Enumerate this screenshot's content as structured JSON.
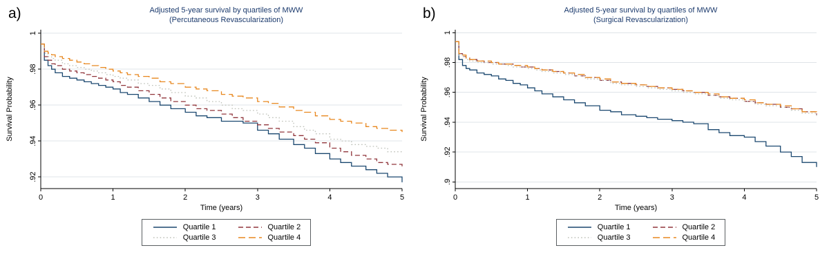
{
  "page": {
    "background": "#ffffff"
  },
  "panel_labels": [
    "a)",
    "b)"
  ],
  "legend": {
    "entries": [
      {
        "label": "Quartile 1",
        "color": "#1a476f",
        "dash": ""
      },
      {
        "label": "Quartile 2",
        "color": "#90353b",
        "dash": "7 4"
      },
      {
        "label": "Quartile 3",
        "color": "#bdc0b8",
        "dash": "1.6 3.2"
      },
      {
        "label": "Quartile 4",
        "color": "#e8871e",
        "dash": "10 5"
      }
    ]
  },
  "chart_data": [
    {
      "type": "line",
      "title": "Adjusted 5-year survival by quartiles of MWW",
      "subtitle": "(Percutaneous Revascularization)",
      "xlabel": "Time (years)",
      "ylabel": "Survival Probability",
      "xlim": [
        0,
        5
      ],
      "ylim": [
        0.9135,
        1.002
      ],
      "xticks": [
        0,
        1,
        2,
        3,
        4,
        5
      ],
      "xtick_labels": [
        "0",
        "1",
        "2",
        "3",
        "4",
        "5"
      ],
      "yticks": [
        1,
        0.98,
        0.96,
        0.94,
        0.92
      ],
      "ytick_labels": [
        "1",
        ".98",
        ".96",
        ".94",
        ".92"
      ],
      "grid": true,
      "grid_color": "#dfe4e8",
      "axis_color": "#000000",
      "title_color": "#1b3a6d",
      "legend_position": "bottom",
      "x": [
        0,
        0.05,
        0.1,
        0.15,
        0.2,
        0.3,
        0.4,
        0.5,
        0.6,
        0.7,
        0.8,
        0.9,
        1,
        1.1,
        1.2,
        1.35,
        1.5,
        1.65,
        1.8,
        2,
        2.15,
        2.3,
        2.5,
        2.65,
        2.8,
        3,
        3.15,
        3.3,
        3.5,
        3.65,
        3.8,
        4,
        4.15,
        4.3,
        4.5,
        4.65,
        4.8,
        5
      ],
      "series": [
        {
          "name": "Quartile 1",
          "color": "#1a476f",
          "dash": "",
          "values": [
            0.994,
            0.985,
            0.982,
            0.98,
            0.978,
            0.976,
            0.975,
            0.974,
            0.973,
            0.972,
            0.971,
            0.97,
            0.969,
            0.967,
            0.966,
            0.964,
            0.962,
            0.96,
            0.958,
            0.956,
            0.954,
            0.953,
            0.951,
            0.951,
            0.95,
            0.946,
            0.944,
            0.941,
            0.938,
            0.936,
            0.933,
            0.93,
            0.928,
            0.926,
            0.924,
            0.922,
            0.92,
            0.917
          ]
        },
        {
          "name": "Quartile 2",
          "color": "#90353b",
          "dash": "7 4",
          "values": [
            0.994,
            0.987,
            0.985,
            0.983,
            0.982,
            0.98,
            0.979,
            0.978,
            0.977,
            0.976,
            0.975,
            0.974,
            0.973,
            0.971,
            0.97,
            0.968,
            0.966,
            0.964,
            0.962,
            0.96,
            0.958,
            0.957,
            0.955,
            0.953,
            0.951,
            0.949,
            0.947,
            0.945,
            0.943,
            0.941,
            0.939,
            0.936,
            0.934,
            0.932,
            0.93,
            0.928,
            0.927,
            0.925
          ]
        },
        {
          "name": "Quartile 3",
          "color": "#bdc0b8",
          "dash": "1.6 3.2",
          "values": [
            0.994,
            0.989,
            0.987,
            0.986,
            0.985,
            0.983,
            0.982,
            0.981,
            0.98,
            0.979,
            0.978,
            0.977,
            0.976,
            0.975,
            0.974,
            0.972,
            0.971,
            0.969,
            0.967,
            0.965,
            0.964,
            0.962,
            0.96,
            0.958,
            0.957,
            0.955,
            0.953,
            0.951,
            0.948,
            0.946,
            0.944,
            0.941,
            0.94,
            0.938,
            0.937,
            0.936,
            0.934,
            0.933
          ]
        },
        {
          "name": "Quartile 4",
          "color": "#e8871e",
          "dash": "10 5",
          "values": [
            0.994,
            0.99,
            0.989,
            0.988,
            0.987,
            0.986,
            0.985,
            0.984,
            0.983,
            0.982,
            0.981,
            0.98,
            0.979,
            0.978,
            0.977,
            0.976,
            0.975,
            0.973,
            0.972,
            0.97,
            0.969,
            0.968,
            0.966,
            0.965,
            0.964,
            0.962,
            0.961,
            0.959,
            0.957,
            0.956,
            0.954,
            0.952,
            0.951,
            0.95,
            0.948,
            0.947,
            0.946,
            0.945
          ]
        }
      ]
    },
    {
      "type": "line",
      "title": "Adjusted 5-year survival by quartiles of MWW",
      "subtitle": "(Surgical Revascularization)",
      "xlabel": "Time (years)",
      "ylabel": "Survival Probability",
      "xlim": [
        0,
        5
      ],
      "ylim": [
        0.8955,
        1.002
      ],
      "xticks": [
        0,
        1,
        2,
        3,
        4,
        5
      ],
      "xtick_labels": [
        "0",
        "1",
        "2",
        "3",
        "4",
        "5"
      ],
      "yticks": [
        1,
        0.98,
        0.96,
        0.94,
        0.92,
        0.9
      ],
      "ytick_labels": [
        "1",
        ".98",
        ".96",
        ".94",
        ".92",
        ".9"
      ],
      "grid": true,
      "grid_color": "#dfe4e8",
      "axis_color": "#000000",
      "title_color": "#1b3a6d",
      "legend_position": "bottom",
      "x": [
        0,
        0.05,
        0.1,
        0.15,
        0.2,
        0.3,
        0.4,
        0.5,
        0.6,
        0.7,
        0.8,
        0.9,
        1,
        1.1,
        1.2,
        1.35,
        1.5,
        1.65,
        1.8,
        2,
        2.15,
        2.3,
        2.5,
        2.65,
        2.8,
        3,
        3.15,
        3.3,
        3.5,
        3.65,
        3.8,
        4,
        4.15,
        4.3,
        4.5,
        4.65,
        4.8,
        5
      ],
      "series": [
        {
          "name": "Quartile 1",
          "color": "#1a476f",
          "dash": "",
          "values": [
            0.994,
            0.982,
            0.978,
            0.976,
            0.975,
            0.973,
            0.972,
            0.971,
            0.969,
            0.968,
            0.966,
            0.965,
            0.963,
            0.961,
            0.959,
            0.957,
            0.955,
            0.953,
            0.951,
            0.948,
            0.947,
            0.945,
            0.944,
            0.943,
            0.942,
            0.941,
            0.94,
            0.939,
            0.935,
            0.933,
            0.931,
            0.93,
            0.927,
            0.924,
            0.92,
            0.917,
            0.913,
            0.91
          ]
        },
        {
          "name": "Quartile 2",
          "color": "#90353b",
          "dash": "7 4",
          "values": [
            0.994,
            0.986,
            0.984,
            0.983,
            0.982,
            0.981,
            0.98,
            0.98,
            0.979,
            0.979,
            0.978,
            0.977,
            0.977,
            0.976,
            0.975,
            0.974,
            0.973,
            0.971,
            0.97,
            0.968,
            0.967,
            0.966,
            0.965,
            0.964,
            0.963,
            0.962,
            0.961,
            0.96,
            0.958,
            0.957,
            0.956,
            0.954,
            0.953,
            0.952,
            0.95,
            0.949,
            0.947,
            0.945
          ]
        },
        {
          "name": "Quartile 3",
          "color": "#bdc0b8",
          "dash": "1.6 3.2",
          "values": [
            0.994,
            0.985,
            0.984,
            0.982,
            0.981,
            0.98,
            0.98,
            0.979,
            0.979,
            0.978,
            0.977,
            0.977,
            0.976,
            0.975,
            0.974,
            0.973,
            0.972,
            0.971,
            0.969,
            0.968,
            0.966,
            0.965,
            0.964,
            0.963,
            0.962,
            0.961,
            0.96,
            0.959,
            0.958,
            0.956,
            0.955,
            0.954,
            0.952,
            0.951,
            0.95,
            0.948,
            0.946,
            0.944
          ]
        },
        {
          "name": "Quartile 4",
          "color": "#e8871e",
          "dash": "10 5",
          "values": [
            0.994,
            0.986,
            0.985,
            0.983,
            0.982,
            0.981,
            0.981,
            0.98,
            0.979,
            0.979,
            0.978,
            0.978,
            0.977,
            0.976,
            0.975,
            0.974,
            0.973,
            0.972,
            0.97,
            0.969,
            0.967,
            0.966,
            0.965,
            0.964,
            0.963,
            0.962,
            0.961,
            0.96,
            0.959,
            0.957,
            0.956,
            0.955,
            0.953,
            0.952,
            0.951,
            0.949,
            0.947,
            0.946
          ]
        }
      ]
    }
  ]
}
